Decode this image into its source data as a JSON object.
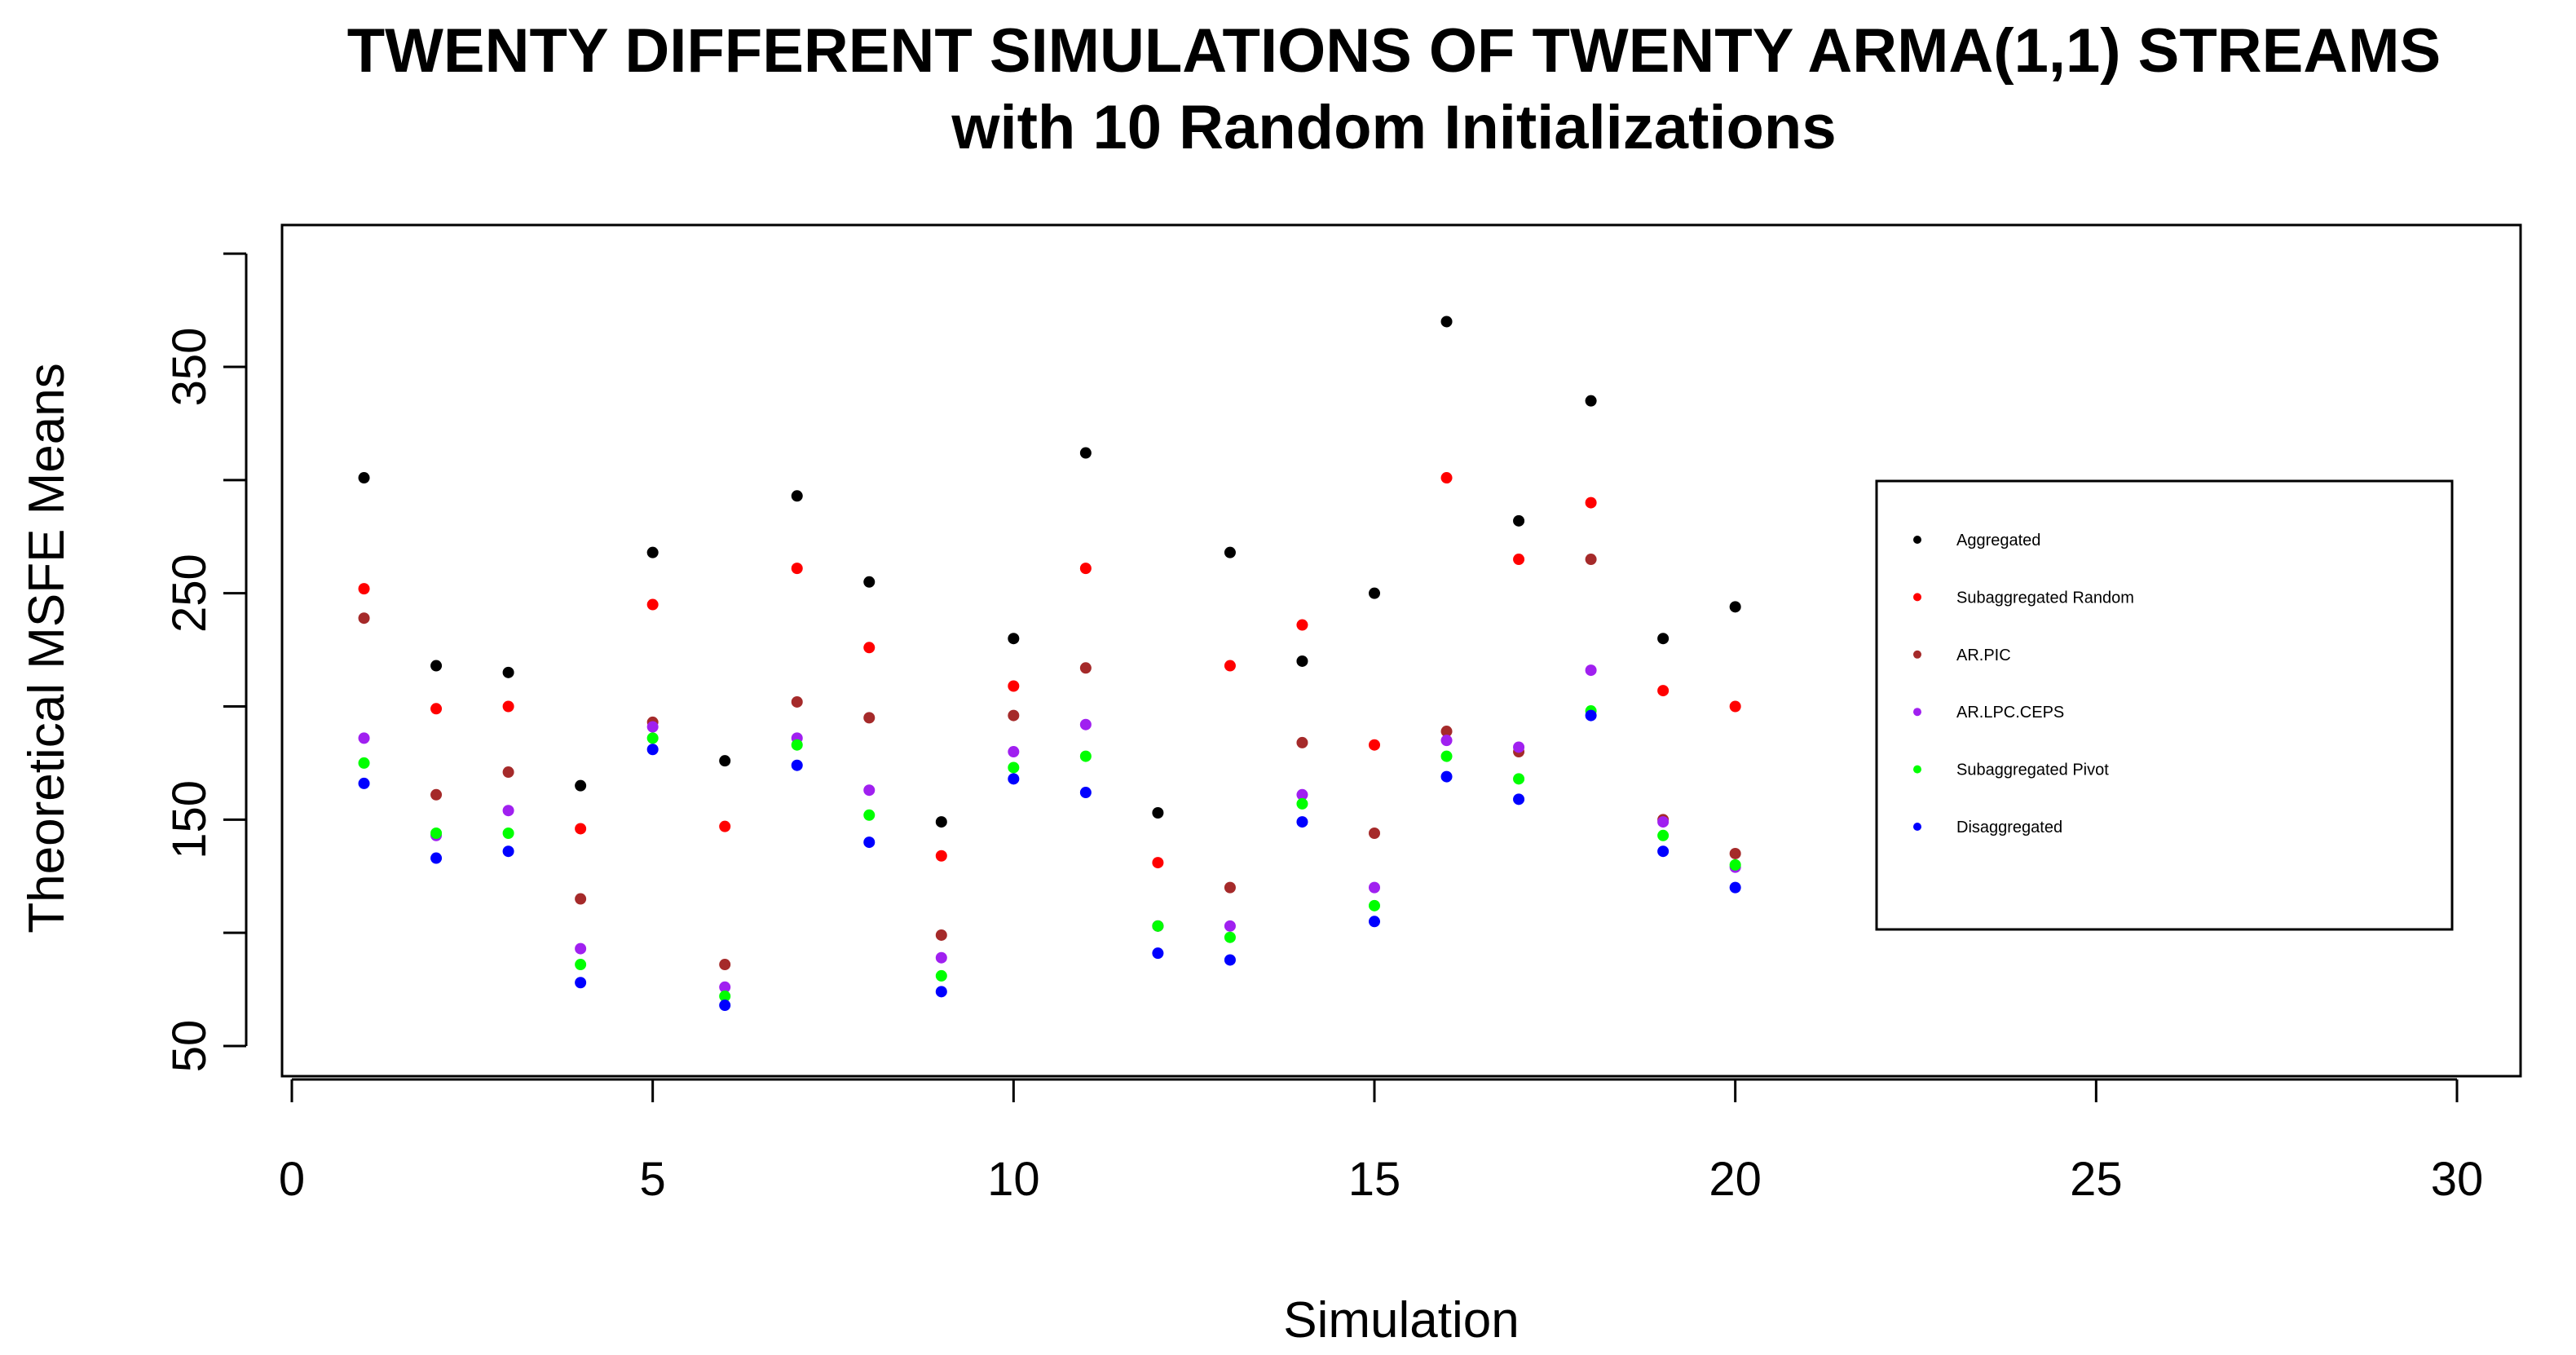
{
  "chart_data": {
    "type": "scatter",
    "title": "TWENTY DIFFERENT SIMULATIONS OF TWENTY ARMA(1,1) STREAMS",
    "subtitle": "with 10 Random Initializations",
    "xlabel": "Simulation",
    "ylabel": "Theoretical  MSFE Means",
    "xlim": [
      0,
      30
    ],
    "ylim": [
      40,
      400
    ],
    "xticks": [
      0,
      5,
      10,
      15,
      20,
      25,
      30
    ],
    "yticks": [
      50,
      150,
      250,
      350
    ],
    "x": [
      1,
      2,
      3,
      4,
      5,
      6,
      7,
      8,
      9,
      10,
      11,
      12,
      13,
      14,
      15,
      16,
      17,
      18,
      19,
      20
    ],
    "legend_position": "right",
    "series": [
      {
        "name": "Aggregated",
        "color": "#000000",
        "values": [
          301,
          218,
          215,
          165,
          268,
          176,
          293,
          255,
          149,
          230,
          312,
          153,
          268,
          220,
          250,
          370,
          282,
          335,
          230,
          244
        ]
      },
      {
        "name": "Subaggregated Random",
        "color": "#ff0000",
        "values": [
          252,
          199,
          200,
          146,
          245,
          147,
          261,
          226,
          134,
          209,
          261,
          131,
          218,
          236,
          183,
          301,
          265,
          290,
          207,
          200
        ]
      },
      {
        "name": "AR.PIC",
        "color": "#a52a2a",
        "values": [
          239,
          161,
          171,
          115,
          193,
          86,
          202,
          195,
          99,
          196,
          217,
          103,
          120,
          184,
          144,
          189,
          180,
          265,
          150,
          135
        ]
      },
      {
        "name": "AR.LPC.CEPS",
        "color": "#a020f0",
        "values": [
          186,
          143,
          154,
          93,
          191,
          76,
          186,
          163,
          89,
          180,
          192,
          103,
          103,
          161,
          120,
          185,
          182,
          216,
          149,
          129
        ]
      },
      {
        "name": "Subaggregated Pivot",
        "color": "#00ff00",
        "values": [
          175,
          144,
          144,
          86,
          186,
          72,
          183,
          152,
          81,
          173,
          178,
          103,
          98,
          157,
          112,
          178,
          168,
          198,
          143,
          130
        ]
      },
      {
        "name": "Disaggregated",
        "color": "#0000ff",
        "values": [
          166,
          133,
          136,
          78,
          181,
          68,
          174,
          140,
          74,
          168,
          162,
          91,
          88,
          149,
          105,
          169,
          159,
          196,
          136,
          120
        ]
      }
    ]
  }
}
